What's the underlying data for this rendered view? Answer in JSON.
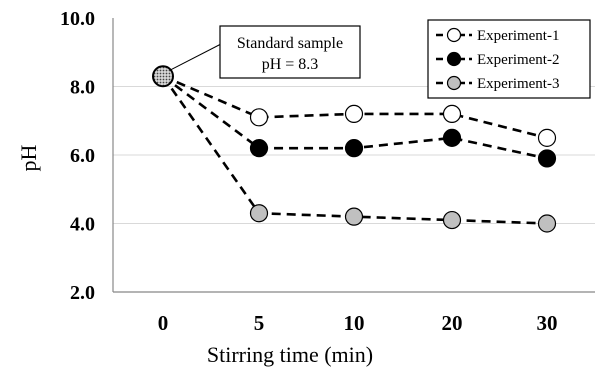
{
  "chart_data": {
    "type": "line",
    "title": "",
    "xlabel": "Stirring time (min)",
    "ylabel": "pH",
    "categories": [
      "0",
      "5",
      "10",
      "20",
      "30"
    ],
    "ylim": [
      2.0,
      10.0
    ],
    "yticks": [
      "2.0",
      "4.0",
      "6.0",
      "8.0",
      "10.0"
    ],
    "grid": true,
    "legend_position": "top-right",
    "standard_point": {
      "category": "0",
      "value": 8.3,
      "color": "#9a9a9a"
    },
    "annotation": {
      "line1": "Standard sample",
      "line2": "pH = 8.3"
    },
    "series": [
      {
        "name": "Experiment-1",
        "values": [
          8.3,
          7.1,
          7.2,
          7.2,
          6.5
        ],
        "marker_fill": "#ffffff"
      },
      {
        "name": "Experiment-2",
        "values": [
          8.3,
          6.2,
          6.2,
          6.5,
          5.9
        ],
        "marker_fill": "#000000"
      },
      {
        "name": "Experiment-3",
        "values": [
          8.3,
          4.3,
          4.2,
          4.1,
          4.0
        ],
        "marker_fill": "#c0c0c0"
      }
    ]
  }
}
